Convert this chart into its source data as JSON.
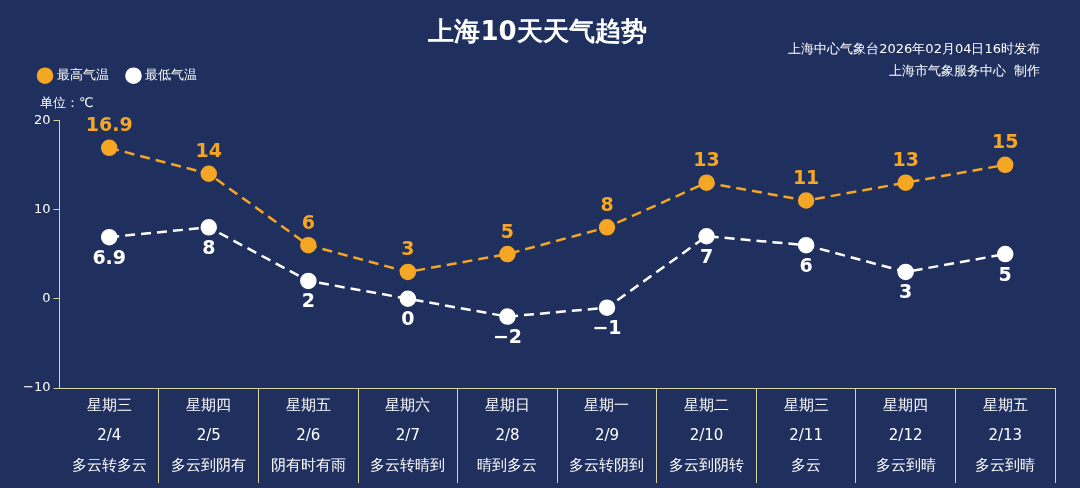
{
  "chart_data": {
    "type": "line",
    "title": "上海10天天气趋势",
    "ylabel": "单位：℃",
    "annotations": [
      "上海中心气象台2026年02月04日16时发布",
      "上海市气象服务中心  制作"
    ],
    "categories": [
      "星期三\n2/4\n多云转多云",
      "星期四\n2/5\n多云到阴有",
      "星期五\n2/6\n阴有时有雨",
      "星期六\n2/7\n多云转晴到",
      "星期日\n2/8\n晴到多云",
      "星期一\n2/9\n多云转阴到",
      "星期二\n2/10\n多云到阴转",
      "星期三\n2/11\n多云",
      "星期四\n2/12\n多云到晴",
      "星期五\n2/13\n多云到晴"
    ],
    "series": [
      {
        "name": "最高气温",
        "color": "#f5a623",
        "values": [
          16.9,
          14,
          6,
          3,
          5,
          8,
          13,
          11,
          13,
          15
        ]
      },
      {
        "name": "最低气温",
        "color": "#ffffff",
        "values": [
          6.9,
          8,
          2,
          0,
          -2,
          -1,
          7,
          6,
          3,
          5
        ]
      }
    ],
    "ylim": [
      -10,
      20
    ],
    "yticks": [
      -10,
      0,
      10,
      20
    ],
    "grid": false,
    "legend": "top left",
    "marker": "circle",
    "line_style": "dashed",
    "data_labels": true
  }
}
